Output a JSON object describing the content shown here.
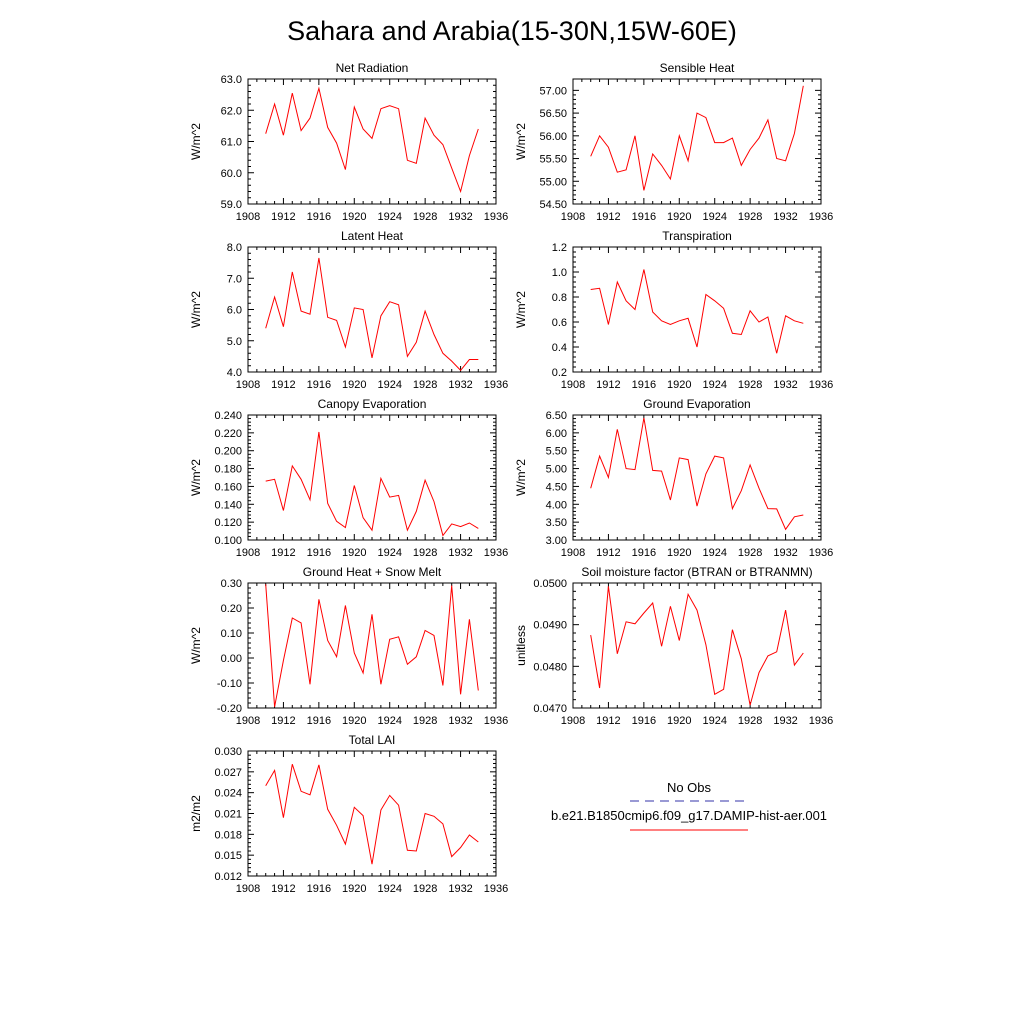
{
  "figure": {
    "title": "Sahara and Arabia(15-30N,15W-60E)",
    "legend": {
      "entries": [
        {
          "label": "No Obs",
          "color": "#3333aa",
          "dash": true
        },
        {
          "label": "b.e21.B1850cmip6.f09_g17.DAMIP-hist-aer.001",
          "color": "#ff0000",
          "dash": false
        }
      ]
    }
  },
  "chart_data": [
    {
      "type": "line",
      "title": "Net Radiation",
      "xlabel": "",
      "ylabel": "W/m^2",
      "xlim": [
        1908,
        1936
      ],
      "ylim": [
        59.0,
        63.0
      ],
      "xticks": [
        "1908",
        "1912",
        "1916",
        "1920",
        "1924",
        "1928",
        "1932",
        "1936"
      ],
      "yticks": [
        "59.0",
        "60.0",
        "61.0",
        "62.0",
        "63.0"
      ],
      "series": [
        {
          "color": "#ff0000",
          "x": [
            1910,
            1911,
            1912,
            1913,
            1914,
            1915,
            1916,
            1917,
            1918,
            1919,
            1920,
            1921,
            1922,
            1923,
            1924,
            1925,
            1926,
            1927,
            1928,
            1929,
            1930,
            1931,
            1932,
            1933,
            1934
          ],
          "values": [
            61.25,
            62.2,
            61.2,
            62.55,
            61.35,
            61.75,
            62.7,
            61.45,
            60.95,
            60.1,
            62.1,
            61.4,
            61.1,
            62.05,
            62.15,
            62.05,
            60.4,
            60.3,
            61.75,
            61.2,
            60.9,
            60.15,
            59.4,
            60.55,
            61.4
          ]
        }
      ]
    },
    {
      "type": "line",
      "title": "Sensible Heat",
      "xlabel": "",
      "ylabel": "W/m^2",
      "xlim": [
        1908,
        1936
      ],
      "ylim": [
        54.5,
        57.25
      ],
      "xticks": [
        "1908",
        "1912",
        "1916",
        "1920",
        "1924",
        "1928",
        "1932",
        "1936"
      ],
      "yticks": [
        "54.50",
        "55.00",
        "55.50",
        "56.00",
        "56.50",
        "57.00"
      ],
      "series": [
        {
          "color": "#ff0000",
          "x": [
            1910,
            1911,
            1912,
            1913,
            1914,
            1915,
            1916,
            1917,
            1918,
            1919,
            1920,
            1921,
            1922,
            1923,
            1924,
            1925,
            1926,
            1927,
            1928,
            1929,
            1930,
            1931,
            1932,
            1933,
            1934
          ],
          "values": [
            55.55,
            56.0,
            55.75,
            55.2,
            55.25,
            56.0,
            54.8,
            55.6,
            55.35,
            55.05,
            56.0,
            55.45,
            56.5,
            56.4,
            55.85,
            55.85,
            55.95,
            55.35,
            55.7,
            55.95,
            56.35,
            55.5,
            55.45,
            56.05,
            57.1
          ]
        }
      ]
    },
    {
      "type": "line",
      "title": "Latent Heat",
      "xlabel": "",
      "ylabel": "W/m^2",
      "xlim": [
        1908,
        1936
      ],
      "ylim": [
        4.0,
        8.0
      ],
      "xticks": [
        "1908",
        "1912",
        "1916",
        "1920",
        "1924",
        "1928",
        "1932",
        "1936"
      ],
      "yticks": [
        "4.0",
        "5.0",
        "6.0",
        "7.0",
        "8.0"
      ],
      "series": [
        {
          "color": "#ff0000",
          "x": [
            1910,
            1911,
            1912,
            1913,
            1914,
            1915,
            1916,
            1917,
            1918,
            1919,
            1920,
            1921,
            1922,
            1923,
            1924,
            1925,
            1926,
            1927,
            1928,
            1929,
            1930,
            1931,
            1932,
            1933,
            1934
          ],
          "values": [
            5.4,
            6.4,
            5.45,
            7.2,
            5.95,
            5.85,
            7.65,
            5.75,
            5.65,
            4.8,
            6.05,
            6.0,
            4.45,
            5.8,
            6.25,
            6.15,
            4.5,
            4.95,
            5.95,
            5.2,
            4.6,
            4.35,
            4.05,
            4.4,
            4.4
          ]
        }
      ]
    },
    {
      "type": "line",
      "title": "Transpiration",
      "xlabel": "",
      "ylabel": "W/m^2",
      "xlim": [
        1908,
        1936
      ],
      "ylim": [
        0.2,
        1.2
      ],
      "xticks": [
        "1908",
        "1912",
        "1916",
        "1920",
        "1924",
        "1928",
        "1932",
        "1936"
      ],
      "yticks": [
        "0.2",
        "0.4",
        "0.6",
        "0.8",
        "1.0",
        "1.2"
      ],
      "series": [
        {
          "color": "#ff0000",
          "x": [
            1910,
            1911,
            1912,
            1913,
            1914,
            1915,
            1916,
            1917,
            1918,
            1919,
            1920,
            1921,
            1922,
            1923,
            1924,
            1925,
            1926,
            1927,
            1928,
            1929,
            1930,
            1931,
            1932,
            1933,
            1934
          ],
          "values": [
            0.86,
            0.87,
            0.58,
            0.92,
            0.77,
            0.7,
            1.02,
            0.68,
            0.61,
            0.58,
            0.61,
            0.63,
            0.4,
            0.82,
            0.77,
            0.71,
            0.51,
            0.5,
            0.69,
            0.6,
            0.64,
            0.35,
            0.65,
            0.61,
            0.59
          ]
        }
      ]
    },
    {
      "type": "line",
      "title": "Canopy Evaporation",
      "xlabel": "",
      "ylabel": "W/m^2",
      "xlim": [
        1908,
        1936
      ],
      "ylim": [
        0.1,
        0.24
      ],
      "xticks": [
        "1908",
        "1912",
        "1916",
        "1920",
        "1924",
        "1928",
        "1932",
        "1936"
      ],
      "yticks": [
        "0.100",
        "0.120",
        "0.140",
        "0.160",
        "0.180",
        "0.200",
        "0.220",
        "0.240"
      ],
      "series": [
        {
          "color": "#ff0000",
          "x": [
            1910,
            1911,
            1912,
            1913,
            1914,
            1915,
            1916,
            1917,
            1918,
            1919,
            1920,
            1921,
            1922,
            1923,
            1924,
            1925,
            1926,
            1927,
            1928,
            1929,
            1930,
            1931,
            1932,
            1933,
            1934
          ],
          "values": [
            0.166,
            0.168,
            0.133,
            0.183,
            0.168,
            0.145,
            0.221,
            0.141,
            0.121,
            0.114,
            0.161,
            0.125,
            0.111,
            0.169,
            0.148,
            0.15,
            0.111,
            0.132,
            0.167,
            0.143,
            0.105,
            0.118,
            0.115,
            0.119,
            0.113
          ]
        }
      ]
    },
    {
      "type": "line",
      "title": "Ground Evaporation",
      "xlabel": "",
      "ylabel": "W/m^2",
      "xlim": [
        1908,
        1936
      ],
      "ylim": [
        3.0,
        6.5
      ],
      "xticks": [
        "1908",
        "1912",
        "1916",
        "1920",
        "1924",
        "1928",
        "1932",
        "1936"
      ],
      "yticks": [
        "3.00",
        "3.50",
        "4.00",
        "4.50",
        "5.00",
        "5.50",
        "6.00",
        "6.50"
      ],
      "series": [
        {
          "color": "#ff0000",
          "x": [
            1910,
            1911,
            1912,
            1913,
            1914,
            1915,
            1916,
            1917,
            1918,
            1919,
            1920,
            1921,
            1922,
            1923,
            1924,
            1925,
            1926,
            1927,
            1928,
            1929,
            1930,
            1931,
            1932,
            1933,
            1934
          ],
          "values": [
            4.45,
            5.35,
            4.75,
            6.1,
            5.0,
            4.97,
            6.42,
            4.95,
            4.93,
            4.12,
            5.3,
            5.25,
            3.95,
            4.85,
            5.35,
            5.3,
            3.88,
            4.38,
            5.1,
            4.45,
            3.88,
            3.87,
            3.3,
            3.65,
            3.7
          ]
        }
      ]
    },
    {
      "type": "line",
      "title": "Ground Heat + Snow Melt",
      "xlabel": "",
      "ylabel": "W/m^2",
      "xlim": [
        1908,
        1936
      ],
      "ylim": [
        -0.2,
        0.3
      ],
      "xticks": [
        "1908",
        "1912",
        "1916",
        "1920",
        "1924",
        "1928",
        "1932",
        "1936"
      ],
      "yticks": [
        "-0.20",
        "-0.10",
        "0.00",
        "0.10",
        "0.20",
        "0.30"
      ],
      "series": [
        {
          "color": "#ff0000",
          "x": [
            1910,
            1911,
            1912,
            1913,
            1914,
            1915,
            1916,
            1917,
            1918,
            1919,
            1920,
            1921,
            1922,
            1923,
            1924,
            1925,
            1926,
            1927,
            1928,
            1929,
            1930,
            1931,
            1932,
            1933,
            1934
          ],
          "values": [
            0.295,
            -0.195,
            -0.01,
            0.16,
            0.14,
            -0.105,
            0.235,
            0.07,
            0.005,
            0.21,
            0.02,
            -0.06,
            0.175,
            -0.105,
            0.075,
            0.085,
            -0.025,
            0.005,
            0.11,
            0.09,
            -0.11,
            0.29,
            -0.145,
            0.155,
            -0.13
          ]
        }
      ]
    },
    {
      "type": "line",
      "title": "Soil moisture factor (BTRAN or BTRANMN)",
      "xlabel": "",
      "ylabel": "unitless",
      "xlim": [
        1908,
        1936
      ],
      "ylim": [
        0.047,
        0.05
      ],
      "xticks": [
        "1908",
        "1912",
        "1916",
        "1920",
        "1924",
        "1928",
        "1932",
        "1936"
      ],
      "yticks": [
        "0.0470",
        "0.0480",
        "0.0490",
        "0.0500"
      ],
      "series": [
        {
          "color": "#ff0000",
          "x": [
            1910,
            1911,
            1912,
            1913,
            1914,
            1915,
            1916,
            1917,
            1918,
            1919,
            1920,
            1921,
            1922,
            1923,
            1924,
            1925,
            1926,
            1927,
            1928,
            1929,
            1930,
            1931,
            1932,
            1933,
            1934
          ],
          "values": [
            0.04875,
            0.04748,
            0.04992,
            0.0483,
            0.04907,
            0.04902,
            0.04928,
            0.04952,
            0.04848,
            0.04944,
            0.04862,
            0.04973,
            0.04935,
            0.04852,
            0.04733,
            0.04745,
            0.04888,
            0.04818,
            0.04707,
            0.04785,
            0.04825,
            0.04835,
            0.04935,
            0.04803,
            0.04832
          ]
        }
      ]
    },
    {
      "type": "line",
      "title": "Total LAI",
      "xlabel": "",
      "ylabel": "m2/m2",
      "xlim": [
        1908,
        1936
      ],
      "ylim": [
        0.012,
        0.03
      ],
      "xticks": [
        "1908",
        "1912",
        "1916",
        "1920",
        "1924",
        "1928",
        "1932",
        "1936"
      ],
      "yticks": [
        "0.012",
        "0.015",
        "0.018",
        "0.021",
        "0.024",
        "0.027",
        "0.030"
      ],
      "series": [
        {
          "color": "#ff0000",
          "x": [
            1910,
            1911,
            1912,
            1913,
            1914,
            1915,
            1916,
            1917,
            1918,
            1919,
            1920,
            1921,
            1922,
            1923,
            1924,
            1925,
            1926,
            1927,
            1928,
            1929,
            1930,
            1931,
            1932,
            1933,
            1934
          ],
          "values": [
            0.025,
            0.0272,
            0.0204,
            0.0281,
            0.0242,
            0.0237,
            0.028,
            0.0216,
            0.0193,
            0.0166,
            0.0219,
            0.0207,
            0.0137,
            0.0215,
            0.0236,
            0.0222,
            0.0157,
            0.0156,
            0.021,
            0.0206,
            0.0195,
            0.0148,
            0.0161,
            0.0179,
            0.0169
          ]
        }
      ]
    }
  ]
}
